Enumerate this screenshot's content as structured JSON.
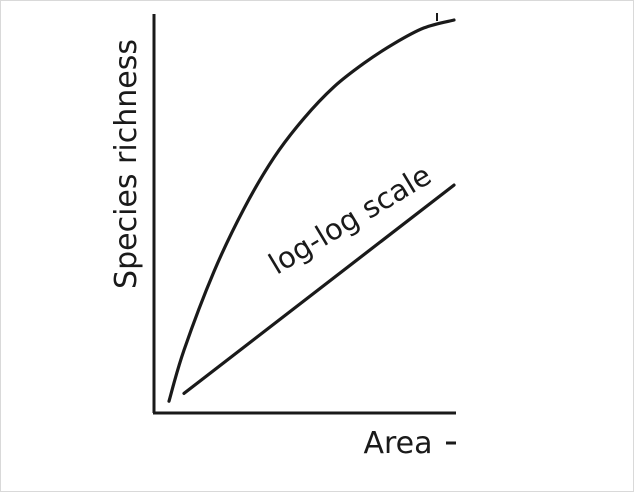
{
  "chart_data": {
    "type": "line",
    "title": "",
    "xlabel": "Area",
    "ylabel": "Species richness",
    "grid": false,
    "legend": "none",
    "annotations": [
      {
        "text": "log-log scale",
        "target": "straight-line-series"
      }
    ],
    "series": [
      {
        "id": "curve",
        "shape": "saturating curve (linear axes)",
        "x": [
          0.05,
          0.1,
          0.2,
          0.3,
          0.4,
          0.5,
          0.6,
          0.7,
          0.8,
          0.9,
          1.0
        ],
        "y": [
          0.03,
          0.16,
          0.36,
          0.52,
          0.65,
          0.75,
          0.83,
          0.89,
          0.94,
          0.98,
          1.0
        ]
      },
      {
        "id": "straight-line",
        "shape": "straight line (log-log axes)",
        "x": [
          0.1,
          1.0
        ],
        "y": [
          0.05,
          0.58
        ]
      }
    ]
  },
  "colors": {
    "ink": "#1a1a1a",
    "background": "#ffffff",
    "border": "#d9d9d9"
  }
}
